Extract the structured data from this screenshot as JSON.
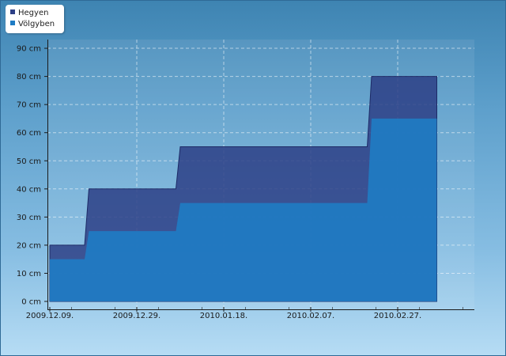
{
  "chart_data": {
    "type": "area",
    "x_tick_labels": [
      "2009.12.09.",
      "2009.12.29.",
      "2010.01.18.",
      "2010.02.07.",
      "2010.02.27."
    ],
    "y_tick_labels": [
      "0 cm",
      "10 cm",
      "20 cm",
      "30 cm",
      "40 cm",
      "50 cm",
      "60 cm",
      "70 cm",
      "80 cm",
      "90 cm"
    ],
    "ylim": [
      0,
      90
    ],
    "xlim": [
      "2009.12.09.",
      "2010.03.08."
    ],
    "grid": true,
    "legend_position": "top-left",
    "series": [
      {
        "name": "Hegyen",
        "color": "#2d3f86",
        "points": [
          [
            "2009.12.09.",
            20
          ],
          [
            "2009.12.17.",
            20
          ],
          [
            "2009.12.18.",
            40
          ],
          [
            "2010.01.07.",
            40
          ],
          [
            "2010.01.08.",
            55
          ],
          [
            "2010.02.20.",
            55
          ],
          [
            "2010.02.21.",
            80
          ],
          [
            "2010.03.08.",
            80
          ]
        ]
      },
      {
        "name": "Völgyben",
        "color": "#1f7cc4",
        "points": [
          [
            "2009.12.09.",
            15
          ],
          [
            "2009.12.17.",
            15
          ],
          [
            "2009.12.18.",
            25
          ],
          [
            "2010.01.07.",
            25
          ],
          [
            "2010.01.08.",
            35
          ],
          [
            "2010.02.20.",
            35
          ],
          [
            "2010.02.21.",
            65
          ],
          [
            "2010.03.08.",
            65
          ]
        ]
      }
    ]
  }
}
